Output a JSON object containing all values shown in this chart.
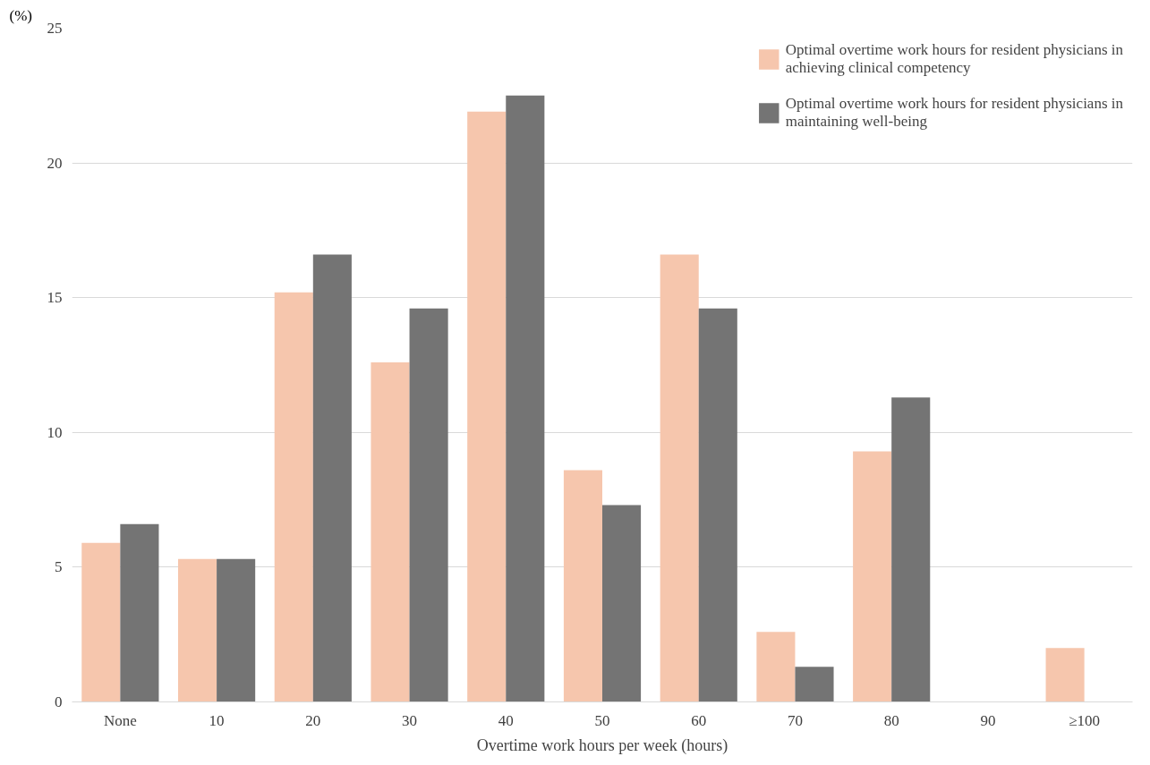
{
  "chart_data": {
    "type": "bar",
    "xlabel": "Overtime work hours per week (hours)",
    "ylabel": "(%)",
    "categories": [
      "None",
      "10",
      "20",
      "30",
      "40",
      "50",
      "60",
      "70",
      "80",
      "90",
      "≥100"
    ],
    "series": [
      {
        "name": "Optimal overtime work hours for resident physicians in achieving clinical competency",
        "color": "#f6c6ad",
        "values": [
          5.9,
          5.3,
          15.2,
          12.6,
          21.9,
          8.6,
          16.6,
          2.6,
          9.3,
          0,
          2.0
        ]
      },
      {
        "name": "Optimal overtime work hours for resident physicians in maintaining well-being",
        "color": "#747474",
        "values": [
          6.6,
          5.3,
          16.6,
          14.6,
          22.5,
          7.3,
          14.6,
          1.3,
          11.3,
          0,
          0
        ]
      }
    ],
    "ylim": [
      0,
      25
    ],
    "yticks": [
      0,
      5,
      10,
      15,
      20,
      25
    ],
    "grid": "y",
    "legend": "top right"
  }
}
